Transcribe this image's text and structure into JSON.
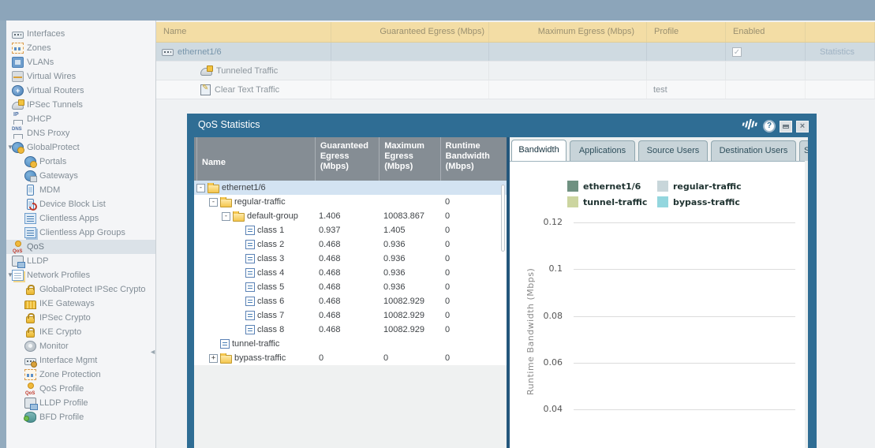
{
  "sidebar": {
    "items": [
      {
        "label": "Interfaces",
        "icon": "interfaces-icon",
        "level": 0
      },
      {
        "label": "Zones",
        "icon": "zones-icon",
        "level": 0
      },
      {
        "label": "VLANs",
        "icon": "vlans-icon",
        "level": 0
      },
      {
        "label": "Virtual Wires",
        "icon": "virtual-wires-icon",
        "level": 0
      },
      {
        "label": "Virtual Routers",
        "icon": "virtual-routers-icon",
        "level": 0
      },
      {
        "label": "IPSec Tunnels",
        "icon": "ipsec-tunnels-icon",
        "level": 0
      },
      {
        "label": "DHCP",
        "icon": "dhcp-icon",
        "level": 0
      },
      {
        "label": "DNS Proxy",
        "icon": "dns-proxy-icon",
        "level": 0
      },
      {
        "label": "GlobalProtect",
        "icon": "globalprotect-icon",
        "level": 0,
        "expanded": true
      },
      {
        "label": "Portals",
        "icon": "portals-icon",
        "level": 1
      },
      {
        "label": "Gateways",
        "icon": "gateways-icon",
        "level": 1
      },
      {
        "label": "MDM",
        "icon": "mdm-icon",
        "level": 1
      },
      {
        "label": "Device Block List",
        "icon": "device-block-list-icon",
        "level": 1
      },
      {
        "label": "Clientless Apps",
        "icon": "clientless-apps-icon",
        "level": 1
      },
      {
        "label": "Clientless App Groups",
        "icon": "clientless-app-groups-icon",
        "level": 1
      },
      {
        "label": "QoS",
        "icon": "qos-icon",
        "level": 0,
        "selected": true
      },
      {
        "label": "LLDP",
        "icon": "lldp-icon",
        "level": 0
      },
      {
        "label": "Network Profiles",
        "icon": "network-profiles-icon",
        "level": 0,
        "expanded": true
      },
      {
        "label": "GlobalProtect IPSec Crypto",
        "icon": "gp-ipsec-crypto-icon",
        "level": 1
      },
      {
        "label": "IKE Gateways",
        "icon": "ike-gateways-icon",
        "level": 1
      },
      {
        "label": "IPSec Crypto",
        "icon": "ipsec-crypto-icon",
        "level": 1
      },
      {
        "label": "IKE Crypto",
        "icon": "ike-crypto-icon",
        "level": 1
      },
      {
        "label": "Monitor",
        "icon": "monitor-icon",
        "level": 1
      },
      {
        "label": "Interface Mgmt",
        "icon": "interface-mgmt-icon",
        "level": 1
      },
      {
        "label": "Zone Protection",
        "icon": "zone-protection-icon",
        "level": 1
      },
      {
        "label": "QoS Profile",
        "icon": "qos-profile-icon",
        "level": 1
      },
      {
        "label": "LLDP Profile",
        "icon": "lldp-profile-icon",
        "level": 1
      },
      {
        "label": "BFD Profile",
        "icon": "bfd-profile-icon",
        "level": 1
      }
    ]
  },
  "qos_table": {
    "columns": [
      "Name",
      "Guaranteed Egress (Mbps)",
      "Maximum Egress (Mbps)",
      "Profile",
      "Enabled",
      ""
    ],
    "rows": [
      {
        "name": "ethernet1/6",
        "icon": "interface-chip-icon",
        "level": 0,
        "selected": true,
        "guaranteed": "",
        "maximum": "",
        "profile": "",
        "enabled": true,
        "statistics": "Statistics"
      },
      {
        "name": "Tunneled Traffic",
        "icon": "tunneled-traffic-icon",
        "level": 1,
        "guaranteed": "",
        "maximum": "",
        "profile": "",
        "enabled": false,
        "statistics": ""
      },
      {
        "name": "Clear Text Traffic",
        "icon": "clear-text-icon",
        "level": 1,
        "guaranteed": "",
        "maximum": "",
        "profile": "test",
        "enabled": false,
        "statistics": ""
      }
    ]
  },
  "dialog": {
    "title": "QoS Statistics",
    "frame_color": "#2F6D94",
    "titlebar_icons": [
      "activity-icon",
      "help-icon",
      "maximize-icon",
      "close-icon"
    ],
    "tree": {
      "columns": [
        "Name",
        "Guaranteed Egress (Mbps)",
        "Maximum Egress (Mbps)",
        "Runtime Bandwidth (Mbps)"
      ],
      "rows": [
        {
          "name": "ethernet1/6",
          "level": 0,
          "icon": "folder-icon",
          "expand": "minus",
          "selected": true,
          "g": "",
          "m": "",
          "r": ""
        },
        {
          "name": "regular-traffic",
          "level": 1,
          "icon": "folder-icon",
          "expand": "minus",
          "g": "",
          "m": "",
          "r": "0"
        },
        {
          "name": "default-group",
          "level": 2,
          "icon": "folder-icon",
          "expand": "minus",
          "g": "1.406",
          "m": "10083.867",
          "r": "0"
        },
        {
          "name": "class 1",
          "level": 3,
          "icon": "class-icon",
          "expand": "",
          "g": "0.937",
          "m": "1.405",
          "r": "0"
        },
        {
          "name": "class 2",
          "level": 3,
          "icon": "class-icon",
          "expand": "",
          "g": "0.468",
          "m": "0.936",
          "r": "0"
        },
        {
          "name": "class 3",
          "level": 3,
          "icon": "class-icon",
          "expand": "",
          "g": "0.468",
          "m": "0.936",
          "r": "0"
        },
        {
          "name": "class 4",
          "level": 3,
          "icon": "class-icon",
          "expand": "",
          "g": "0.468",
          "m": "0.936",
          "r": "0"
        },
        {
          "name": "class 5",
          "level": 3,
          "icon": "class-icon",
          "expand": "",
          "g": "0.468",
          "m": "0.936",
          "r": "0"
        },
        {
          "name": "class 6",
          "level": 3,
          "icon": "class-icon",
          "expand": "",
          "g": "0.468",
          "m": "10082.929",
          "r": "0"
        },
        {
          "name": "class 7",
          "level": 3,
          "icon": "class-icon",
          "expand": "",
          "g": "0.468",
          "m": "10082.929",
          "r": "0"
        },
        {
          "name": "class 8",
          "level": 3,
          "icon": "class-icon",
          "expand": "",
          "g": "0.468",
          "m": "10082.929",
          "r": "0"
        },
        {
          "name": "tunnel-traffic",
          "level": 1,
          "icon": "class-icon",
          "expand": "",
          "g": "",
          "m": "",
          "r": ""
        },
        {
          "name": "bypass-traffic",
          "level": 1,
          "icon": "folder-icon",
          "expand": "plus",
          "g": "0",
          "m": "0",
          "r": "0"
        }
      ]
    },
    "tabs": [
      {
        "label": "Bandwidth",
        "active": true
      },
      {
        "label": "Applications",
        "active": false
      },
      {
        "label": "Source Users",
        "active": false
      },
      {
        "label": "Destination Users",
        "active": false
      },
      {
        "label": "S",
        "active": false
      }
    ],
    "chart": {
      "ylabel": "Runtime Bandwidth (Mbps)",
      "yticks": [
        "0.12",
        "0.1",
        "0.08",
        "0.06",
        "0.04"
      ],
      "legend": [
        {
          "label": "ethernet1/6",
          "color": "#6F9181"
        },
        {
          "label": "regular-traffic",
          "color": "#C8D6DA"
        },
        {
          "label": "tunnel-traffic",
          "color": "#CCD5A0"
        },
        {
          "label": "bypass-traffic",
          "color": "#93D6DE"
        }
      ]
    }
  },
  "chart_data": {
    "type": "line",
    "title": "",
    "xlabel": "",
    "ylabel": "Runtime Bandwidth (Mbps)",
    "visible_yticks": [
      0.12,
      0.1,
      0.08,
      0.06,
      0.04
    ],
    "grid": true,
    "legend_position": "top-center",
    "series": [
      {
        "name": "ethernet1/6",
        "color": "#6F9181",
        "values": []
      },
      {
        "name": "regular-traffic",
        "color": "#C8D6DA",
        "values": []
      },
      {
        "name": "tunnel-traffic",
        "color": "#CCD5A0",
        "values": []
      },
      {
        "name": "bypass-traffic",
        "color": "#93D6DE",
        "values": []
      }
    ]
  }
}
